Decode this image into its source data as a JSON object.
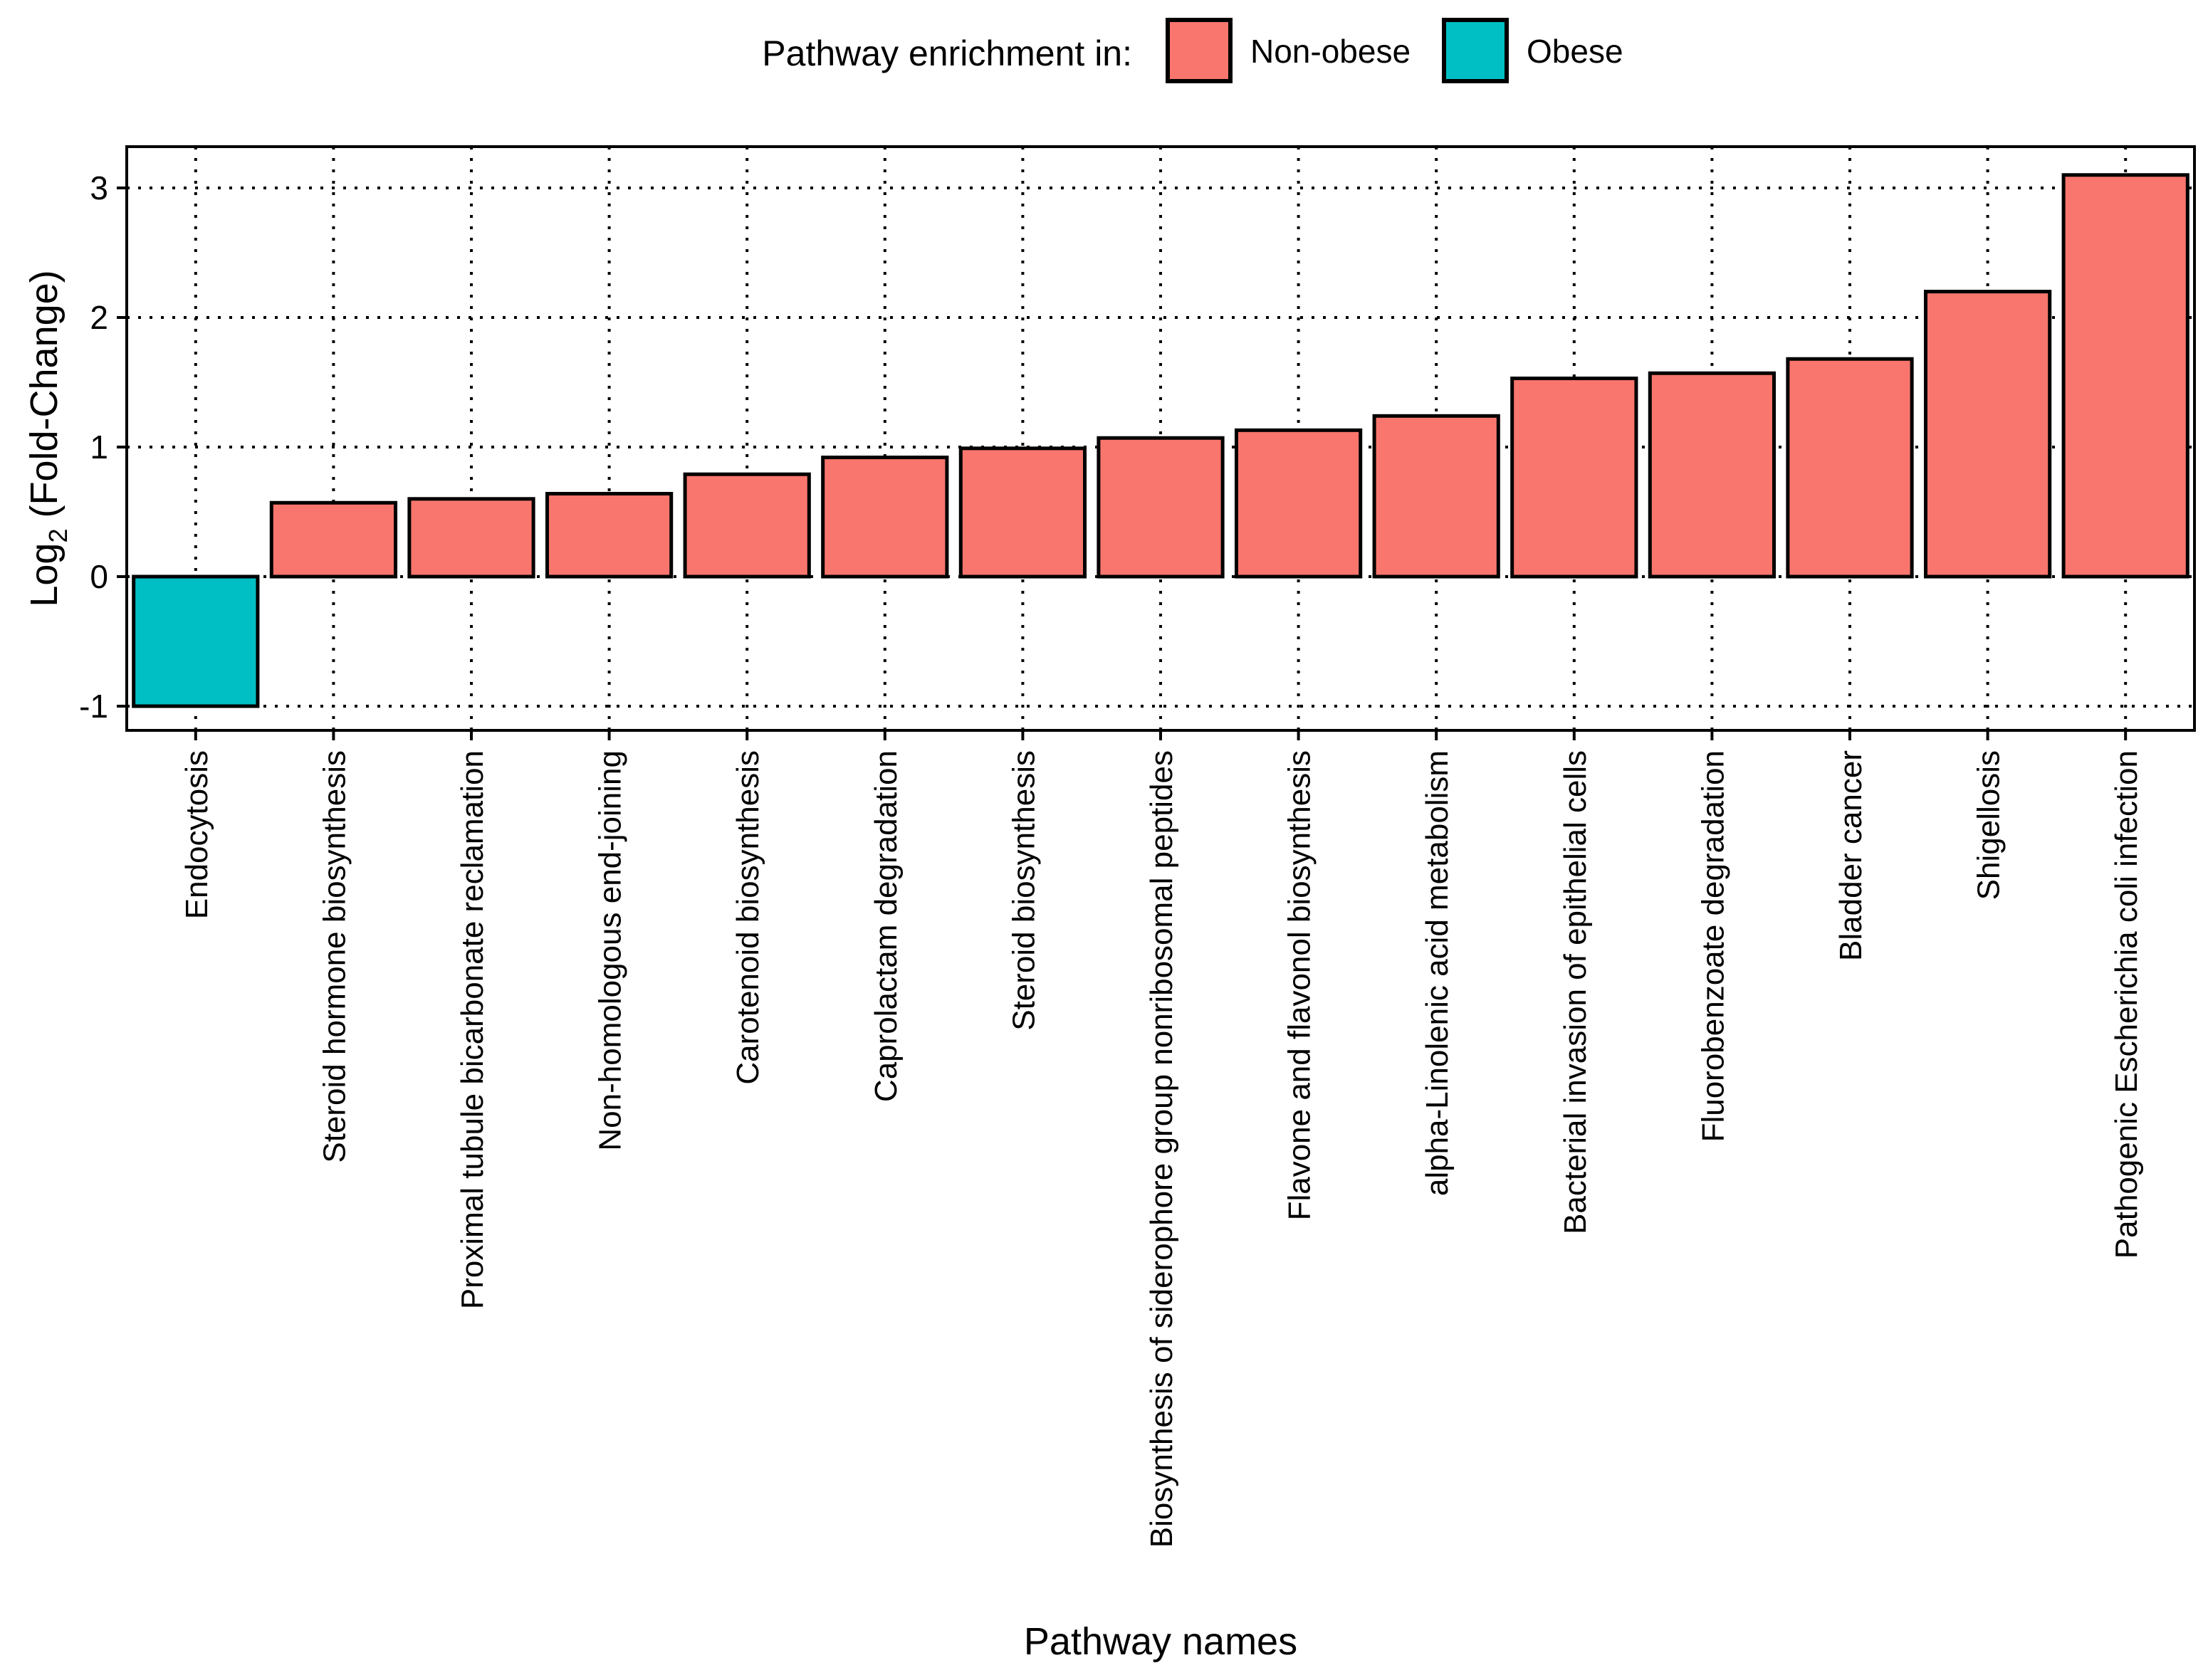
{
  "chart_data": {
    "type": "bar",
    "title": "",
    "xlabel": "Pathway names",
    "ylabel_prefix": "Log",
    "ylabel_subscript": "2",
    "ylabel_suffix": " (Fold-Change)",
    "ylim": [
      -1.1,
      3.3
    ],
    "yticks": [
      -1,
      0,
      1,
      2,
      3
    ],
    "grid": true,
    "legend": {
      "position": "top",
      "title": "Pathway enrichment in:",
      "entries": [
        {
          "label": "Non-obese",
          "color": "#F8766D"
        },
        {
          "label": "Obese",
          "color": "#00BFC4"
        }
      ]
    },
    "categories": [
      "Endocytosis",
      "Steroid hormone biosynthesis",
      "Proximal tubule bicarbonate reclamation",
      "Non-homologous end-joining",
      "Carotenoid biosynthesis",
      "Caprolactam degradation",
      "Steroid biosynthesis",
      "Biosynthesis of siderophore group nonribosomal peptides",
      "Flavone and flavonol biosynthesis",
      "alpha-Linolenic acid metabolism",
      "Bacterial invasion of epithelial cells",
      "Fluorobenzoate degradation",
      "Bladder cancer",
      "Shigellosis",
      "Pathogenic Escherichia coli infection"
    ],
    "values": [
      -1.0,
      0.57,
      0.6,
      0.64,
      0.79,
      0.92,
      0.99,
      1.07,
      1.13,
      1.24,
      1.53,
      1.57,
      1.68,
      2.2,
      3.1
    ],
    "groups": [
      "Obese",
      "Non-obese",
      "Non-obese",
      "Non-obese",
      "Non-obese",
      "Non-obese",
      "Non-obese",
      "Non-obese",
      "Non-obese",
      "Non-obese",
      "Non-obese",
      "Non-obese",
      "Non-obese",
      "Non-obese",
      "Non-obese"
    ]
  }
}
